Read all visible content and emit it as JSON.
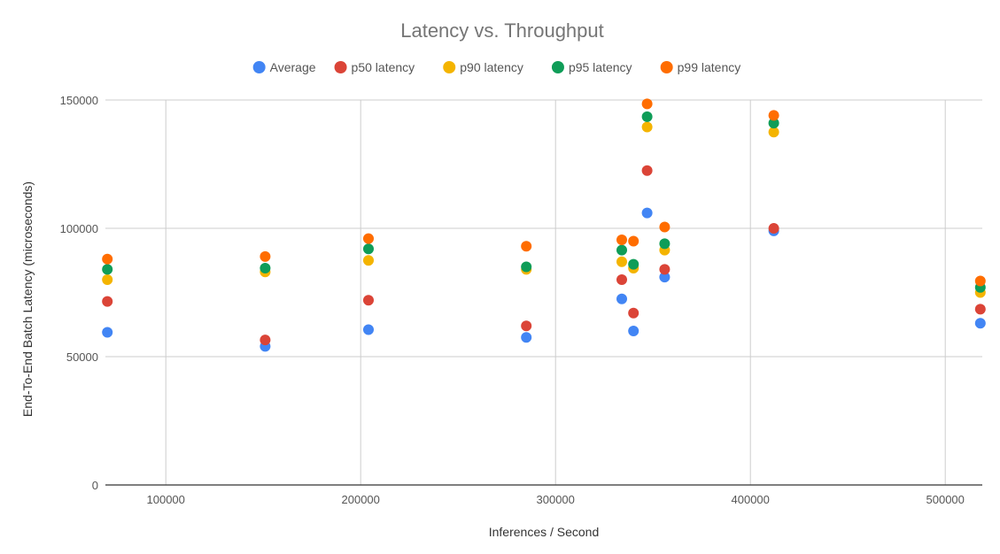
{
  "chart_data": {
    "type": "scatter",
    "title": "Latency vs. Throughput",
    "xlabel": "Inferences / Second",
    "ylabel": "End-To-End Batch Latency (microseconds)",
    "xlim": [
      69000,
      519000
    ],
    "ylim": [
      0,
      150000
    ],
    "x_ticks": [
      100000,
      200000,
      300000,
      400000,
      500000
    ],
    "x_tick_labels": [
      "100000",
      "200000",
      "300000",
      "400000",
      "500000"
    ],
    "y_ticks": [
      0,
      50000,
      100000,
      150000
    ],
    "y_tick_labels": [
      "0",
      "50000",
      "100000",
      "150000"
    ],
    "grid": true,
    "legend_position": "top",
    "series": [
      {
        "name": "Average",
        "color": "#4285F4",
        "points": [
          [
            70000,
            59500
          ],
          [
            151000,
            54000
          ],
          [
            204000,
            60500
          ],
          [
            285000,
            57500
          ],
          [
            334000,
            72500
          ],
          [
            340000,
            60000
          ],
          [
            347000,
            106000
          ],
          [
            356000,
            81000
          ],
          [
            412000,
            99000
          ],
          [
            518000,
            63000
          ]
        ]
      },
      {
        "name": "p50 latency",
        "color": "#DB4437",
        "points": [
          [
            70000,
            71500
          ],
          [
            151000,
            56500
          ],
          [
            204000,
            72000
          ],
          [
            285000,
            62000
          ],
          [
            334000,
            80000
          ],
          [
            340000,
            67000
          ],
          [
            347000,
            122500
          ],
          [
            356000,
            84000
          ],
          [
            412000,
            100000
          ],
          [
            518000,
            68500
          ]
        ]
      },
      {
        "name": "p90 latency",
        "color": "#F4B400",
        "points": [
          [
            70000,
            80000
          ],
          [
            151000,
            83000
          ],
          [
            204000,
            87500
          ],
          [
            285000,
            84000
          ],
          [
            334000,
            87000
          ],
          [
            340000,
            84500
          ],
          [
            347000,
            139500
          ],
          [
            356000,
            91500
          ],
          [
            412000,
            137500
          ],
          [
            518000,
            75000
          ]
        ]
      },
      {
        "name": "p95 latency",
        "color": "#0F9D58",
        "points": [
          [
            70000,
            84000
          ],
          [
            151000,
            84500
          ],
          [
            204000,
            92000
          ],
          [
            285000,
            85000
          ],
          [
            334000,
            91500
          ],
          [
            340000,
            86000
          ],
          [
            347000,
            143500
          ],
          [
            356000,
            94000
          ],
          [
            412000,
            141000
          ],
          [
            518000,
            77000
          ]
        ]
      },
      {
        "name": "p99 latency",
        "color": "#FF6D00",
        "points": [
          [
            70000,
            88000
          ],
          [
            151000,
            89000
          ],
          [
            204000,
            96000
          ],
          [
            285000,
            93000
          ],
          [
            334000,
            95500
          ],
          [
            340000,
            95000
          ],
          [
            347000,
            148500
          ],
          [
            356000,
            100500
          ],
          [
            412000,
            144000
          ],
          [
            518000,
            79500
          ]
        ]
      }
    ]
  },
  "colors": {
    "grid": "#cccccc",
    "axis": "#333333"
  }
}
